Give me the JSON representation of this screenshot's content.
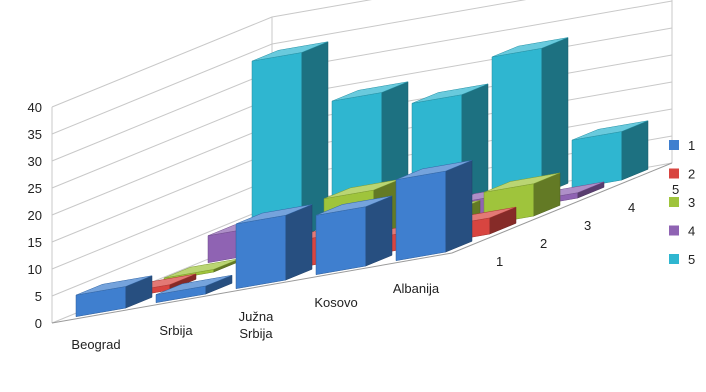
{
  "chart_data": {
    "type": "bar",
    "subtype": "3d-clustered-column",
    "categories": [
      "Beograd",
      "Srbija",
      "Južna Srbija",
      "Kosovo",
      "Albanija"
    ],
    "series": [
      {
        "name": "1",
        "values": [
          4,
          1.5,
          12,
          11,
          15
        ],
        "color": "#3f7fcf"
      },
      {
        "name": "2",
        "values": [
          1,
          0,
          5,
          3,
          3
        ],
        "color": "#d84540"
      },
      {
        "name": "3",
        "values": [
          0.5,
          0,
          10,
          3.5,
          6
        ],
        "color": "#9fc43c"
      },
      {
        "name": "4",
        "values": [
          5,
          0.5,
          1.5,
          3,
          1
        ],
        "color": "#8f63b3"
      },
      {
        "name": "5",
        "values": [
          34,
          24,
          21,
          27,
          9
        ],
        "color": "#2fb6d0"
      }
    ],
    "y_ticks": [
      0,
      5,
      10,
      15,
      20,
      25,
      30,
      35,
      40
    ],
    "ylim": [
      0,
      40
    ],
    "depth_labels": [
      "1",
      "2",
      "3",
      "4",
      "5"
    ],
    "grid": true,
    "legend_position": "right",
    "title": "",
    "xlabel": "",
    "ylabel": ""
  }
}
